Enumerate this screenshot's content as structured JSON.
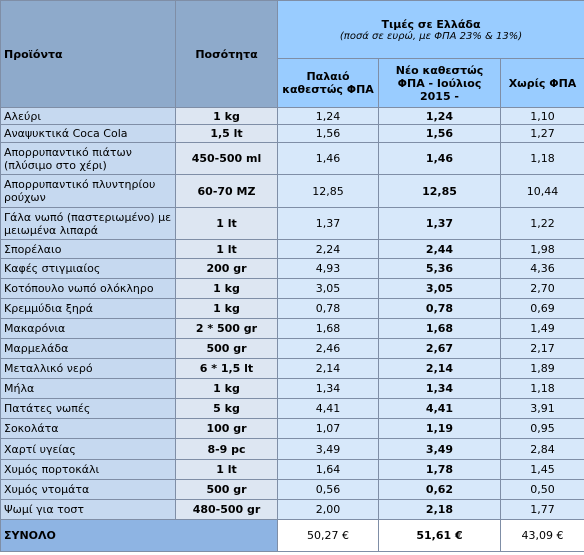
{
  "header": {
    "products": "Προϊόντα",
    "quantity": "Ποσότητα",
    "prices_title": "Τιμές σε Ελλάδα",
    "prices_subtitle": "(ποσά σε ευρώ, με ΦΠΑ 23% & 13%)",
    "old_vat": "Παλαιό καθεστώς  ΦΠΑ",
    "new_vat": "Νέο καθεστώς ΦΠΑ - Ιούλιος 2015 -",
    "no_vat": "Χωρίς ΦΠΑ"
  },
  "table": {
    "rows": [
      [
        "Αλεύρι",
        "1 kg",
        "1,24",
        "1,24",
        "1,10"
      ],
      [
        "Αναψυκτικά Coca Cola",
        "1,5 lt",
        "1,56",
        "1,56",
        "1,27"
      ],
      [
        "Απορρυπαντικό πιάτων (πλύσιμο στο χέρι)",
        "450-500 ml",
        "1,46",
        "1,46",
        "1,18"
      ],
      [
        "Απορρυπαντικό πλυντηρίου ρούχων",
        "60-70 MZ",
        "12,85",
        "12,85",
        "10,44"
      ],
      [
        "Γάλα νωπό (παστεριωμένο)  με μειωμένα λιπαρά",
        "1 lt",
        "1,37",
        "1,37",
        "1,22"
      ],
      [
        "Σπορέλαιο",
        "1 lt",
        "2,24",
        "2,44",
        "1,98"
      ],
      [
        "Καφές στιγμιαίος",
        "200 gr",
        "4,93",
        "5,36",
        "4,36"
      ],
      [
        "Κοτόπουλο νωπό ολόκληρο",
        "1 kg",
        "3,05",
        "3,05",
        "2,70"
      ],
      [
        "Κρεμμύδια ξηρά",
        "1 kg",
        "0,78",
        "0,78",
        "0,69"
      ],
      [
        "Μακαρόνια",
        "2 * 500 gr",
        "1,68",
        "1,68",
        "1,49"
      ],
      [
        "Μαρμελάδα",
        "500 gr",
        "2,46",
        "2,67",
        "2,17"
      ],
      [
        "Μεταλλικό νερό",
        "6 * 1,5 lt",
        "2,14",
        "2,14",
        "1,89"
      ],
      [
        "Μήλα",
        "1 kg",
        "1,34",
        "1,34",
        "1,18"
      ],
      [
        "Πατάτες νωπές",
        "5 kg",
        "4,41",
        "4,41",
        "3,91"
      ],
      [
        "Σοκολάτα",
        "100 gr",
        "1,07",
        "1,19",
        "0,95"
      ],
      [
        "Χαρτί υγείας",
        "8-9 pc",
        "3,49",
        "3,49",
        "2,84"
      ],
      [
        "Χυμός πορτοκάλι",
        "1 lt",
        "1,64",
        "1,78",
        "1,45"
      ],
      [
        "Χυμός ντομάτα",
        "500 gr",
        "0,56",
        "0,62",
        "0,50"
      ],
      [
        "Ψωμί για τοστ",
        "480-500 gr",
        "2,00",
        "2,18",
        "1,77"
      ]
    ],
    "total": {
      "label": "ΣΥΝΟΛΟ",
      "old": "50,27 €",
      "new": "51,61 €",
      "no_vat": "43,09 €"
    }
  }
}
